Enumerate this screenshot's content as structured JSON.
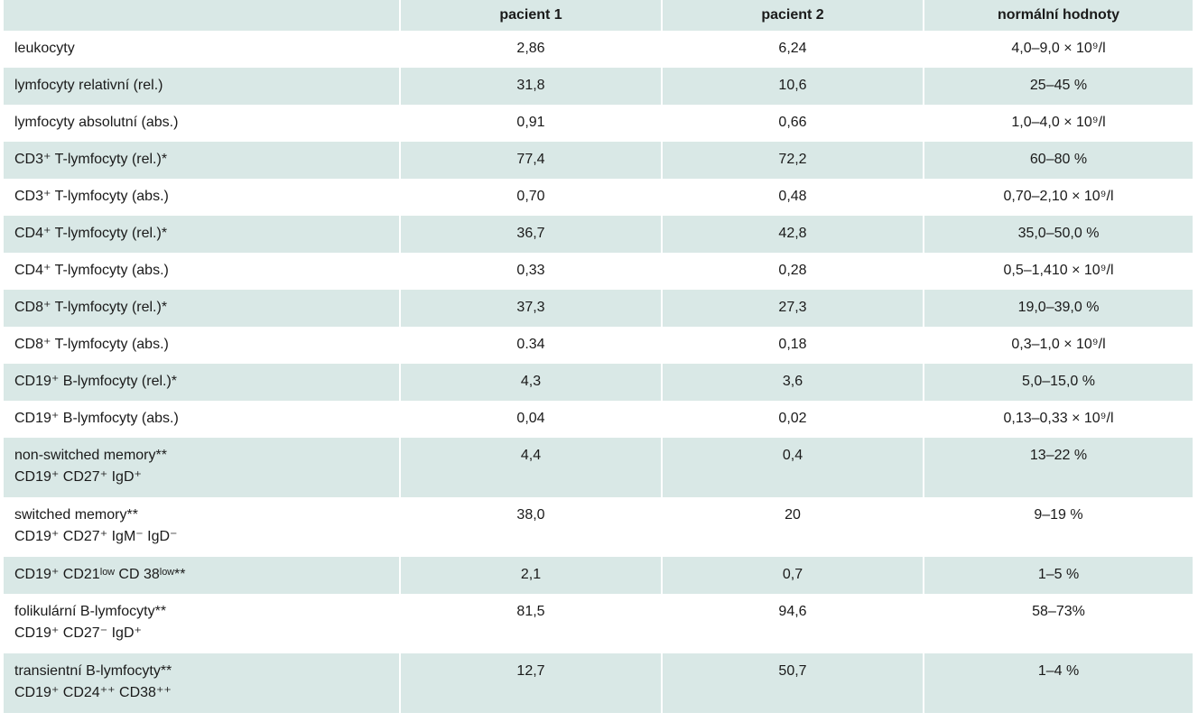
{
  "table": {
    "headers": [
      "pacient 1",
      "pacient 2",
      "normální hodnoty"
    ],
    "rows": [
      [
        "leukocyty",
        "2,86",
        "6,24",
        "4,0–9,0 × 10⁹/l"
      ],
      [
        "lymfocyty relativní (rel.)",
        "31,8",
        "10,6",
        "25–45 %"
      ],
      [
        "lymfocyty absolutní (abs.)",
        "0,91",
        "0,66",
        "1,0–4,0 × 10⁹/l"
      ],
      [
        "CD3⁺ T-lymfocyty (rel.)*",
        "77,4",
        "72,2",
        "60–80 %"
      ],
      [
        "CD3⁺ T-lymfocyty (abs.)",
        "0,70",
        "0,48",
        "0,70–2,10 × 10⁹/l"
      ],
      [
        "CD4⁺ T-lymfocyty (rel.)*",
        "36,7",
        "42,8",
        "35,0–50,0 %"
      ],
      [
        "CD4⁺ T-lymfocyty (abs.)",
        "0,33",
        "0,28",
        "0,5–1,410 × 10⁹/l"
      ],
      [
        "CD8⁺ T-lymfocyty (rel.)*",
        "37,3",
        "27,3",
        "19,0–39,0 %"
      ],
      [
        "CD8⁺ T-lymfocyty (abs.)",
        "0.34",
        "0,18",
        "0,3–1,0 × 10⁹/l"
      ],
      [
        "CD19⁺ B-lymfocyty (rel.)*",
        "4,3",
        "3,6",
        "5,0–15,0 %"
      ],
      [
        "CD19⁺ B-lymfocyty (abs.)",
        "0,04",
        "0,02",
        "0,13–0,33 × 10⁹/l"
      ],
      [
        [
          "non-switched memory**",
          "CD19⁺ CD27⁺ IgD⁺"
        ],
        "4,4",
        "0,4",
        "13–22 %"
      ],
      [
        [
          "switched memory**",
          "CD19⁺ CD27⁺ IgM⁻ IgD⁻"
        ],
        "38,0",
        "20",
        "9–19 %"
      ],
      [
        "CD19⁺ CD21ˡᵒʷ CD 38ˡᵒʷ**",
        "2,1",
        "0,7",
        "1–5 %"
      ],
      [
        [
          "folikulární B-lymfocyty**",
          "CD19⁺ CD27⁻ IgD⁺"
        ],
        "81,5",
        "94,6",
        "58–73%"
      ],
      [
        [
          "transientní B-lymfocyty**",
          "CD19⁺ CD24⁺⁺ CD38⁺⁺"
        ],
        "12,7",
        "50,7",
        "1–4 %"
      ]
    ]
  }
}
